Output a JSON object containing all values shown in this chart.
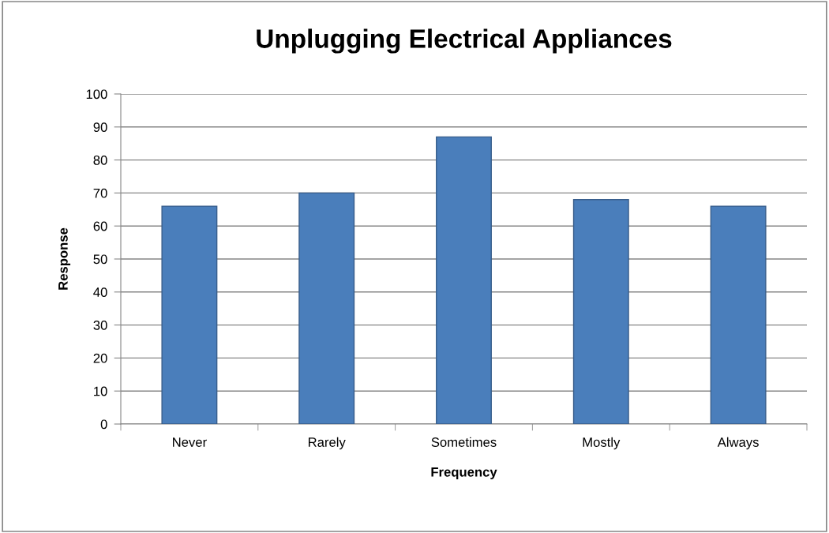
{
  "chart_data": {
    "type": "bar",
    "title": "Unplugging Electrical Appliances",
    "xlabel": "Frequency",
    "ylabel": "Response",
    "categories": [
      "Never",
      "Rarely",
      "Sometimes",
      "Mostly",
      "Always"
    ],
    "values": [
      66,
      70,
      87,
      68,
      66
    ],
    "color": "#4a7ebb",
    "ylim": [
      0,
      100
    ],
    "yticks": [
      0,
      10,
      20,
      30,
      40,
      50,
      60,
      70,
      80,
      90,
      100
    ],
    "grid": "y"
  }
}
